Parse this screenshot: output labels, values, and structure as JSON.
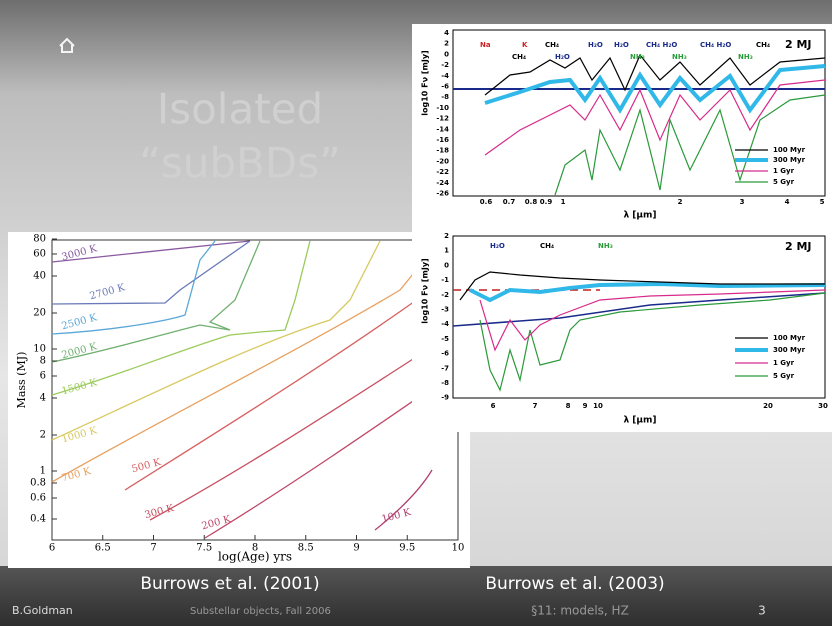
{
  "slide": {
    "title": [
      "Isolated",
      "“subBDs”"
    ],
    "captions": [
      "Burrows et al. (2001)",
      "Burrows et al. (2003)"
    ],
    "footer": {
      "author": "B.Goldman",
      "course": "Substellar objects, Fall 2006",
      "section": "§11: models, HZ",
      "page": "3"
    }
  },
  "left_figure": {
    "y_label": "Mass (MJ)",
    "x_label": "log(Age) yrs",
    "y_ticks": [
      "80",
      "60",
      "40",
      "20",
      "10",
      "8",
      "6",
      "4",
      "2",
      "1",
      "0.8",
      "0.6",
      "0.4"
    ],
    "x_ticks": [
      "6",
      "6.5",
      "7",
      "7.5",
      "8",
      "8.5",
      "9",
      "9.5",
      "10"
    ],
    "curve_labels": [
      "3000 K",
      "2700 K",
      "2500 K",
      "2000 K",
      "1500 K",
      "1000 K",
      "700 K",
      "500 K",
      "300 K",
      "200 K",
      "100 K"
    ]
  },
  "top_spectrum": {
    "y_label": "log10 Fν [mJy]",
    "x_label": "λ [μm]",
    "y_ticks": [
      "4",
      "2",
      "0",
      "-2",
      "-4",
      "-6",
      "-8",
      "-10",
      "-12",
      "-14",
      "-16",
      "-18",
      "-20",
      "-22",
      "-24",
      "-26"
    ],
    "x_ticks": [
      "0.6",
      "0.7",
      "0.8",
      "0.9",
      "1",
      "2",
      "3",
      "4",
      "5"
    ],
    "features": [
      "Na",
      "K",
      "CH₄",
      "CH₄",
      "H₂O",
      "H₂O",
      "H₂O",
      "NH₃",
      "CH₄ H₂O",
      "NH₃",
      "CH₄ H₂O",
      "NH₃",
      "CH₄"
    ],
    "mass": "2 MJ",
    "legend": [
      "100 Myr",
      "300 Myr",
      "1 Gyr",
      "5 Gyr"
    ]
  },
  "bottom_spectrum": {
    "y_label": "log10 Fν [mJy]",
    "x_label": "λ [μm]",
    "y_ticks": [
      "2",
      "1",
      "0",
      "-1",
      "-2",
      "-3",
      "-4",
      "-5",
      "-6",
      "-7",
      "-8",
      "-9"
    ],
    "x_ticks": [
      "6",
      "7",
      "8",
      "9",
      "10",
      "20",
      "30"
    ],
    "features": [
      "H₂O",
      "CH₄",
      "NH₃"
    ],
    "mass": "2 MJ",
    "legend": [
      "100 Myr",
      "300 Myr",
      "1 Gyr",
      "5 Gyr"
    ]
  }
}
